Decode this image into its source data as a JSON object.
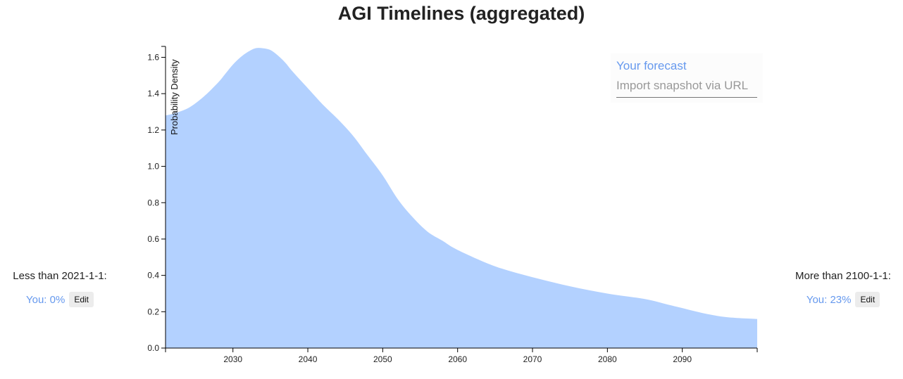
{
  "page": {
    "title": "AGI Timelines (aggregated)"
  },
  "left_bound": {
    "label": "Less than 2021-1-1:",
    "you_text": "You: 0%",
    "edit_label": "Edit"
  },
  "right_bound": {
    "label": "More than 2100-1-1:",
    "you_text": "You: 23%",
    "edit_label": "Edit"
  },
  "panel": {
    "your_forecast_label": "Your forecast",
    "import_placeholder": "Import snapshot via URL"
  },
  "colors": {
    "area_fill": "#b3d1ff",
    "link": "#6699ee"
  },
  "chart_data": {
    "type": "area",
    "title": "AGI Timelines (aggregated)",
    "xlabel": "",
    "ylabel": "Probability Density",
    "xlim": [
      2021,
      2100
    ],
    "ylim": [
      0,
      1.66
    ],
    "xticks": [
      2030,
      2040,
      2050,
      2060,
      2070,
      2080,
      2090
    ],
    "yticks": [
      0.0,
      0.2,
      0.4,
      0.6,
      0.8,
      1.0,
      1.2,
      1.4,
      1.6
    ],
    "ytick_labels": [
      "0.0",
      "0.2",
      "0.4",
      "0.6",
      "0.8",
      "1.0",
      "1.2",
      "1.4",
      "1.6"
    ],
    "grid": false,
    "series": [
      {
        "x": [
          2021,
          2022,
          2024,
          2026,
          2028,
          2029,
          2030,
          2031,
          2032,
          2033,
          2034,
          2035,
          2036,
          2037,
          2038,
          2040,
          2042,
          2044,
          2046,
          2048,
          2050,
          2052,
          2054,
          2056,
          2058,
          2060,
          2065,
          2070,
          2075,
          2080,
          2085,
          2088,
          2090,
          2093,
          2096,
          2100
        ],
        "y": [
          1.28,
          1.29,
          1.32,
          1.38,
          1.46,
          1.51,
          1.56,
          1.6,
          1.63,
          1.65,
          1.65,
          1.64,
          1.61,
          1.57,
          1.52,
          1.43,
          1.34,
          1.26,
          1.17,
          1.06,
          0.95,
          0.82,
          0.72,
          0.64,
          0.59,
          0.54,
          0.45,
          0.39,
          0.34,
          0.3,
          0.27,
          0.24,
          0.22,
          0.19,
          0.17,
          0.16
        ]
      }
    ]
  }
}
